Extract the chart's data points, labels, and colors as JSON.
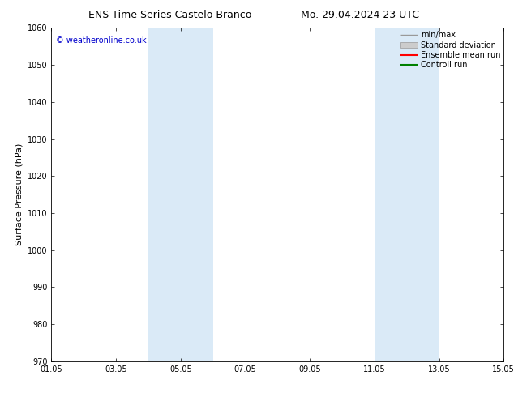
{
  "title_left": "ENS Time Series Castelo Branco",
  "title_right": "Mo. 29.04.2024 23 UTC",
  "ylabel": "Surface Pressure (hPa)",
  "ylim": [
    970,
    1060
  ],
  "yticks": [
    970,
    980,
    990,
    1000,
    1010,
    1020,
    1030,
    1040,
    1050,
    1060
  ],
  "xlim": [
    0,
    14
  ],
  "xtick_labels": [
    "01.05",
    "03.05",
    "05.05",
    "07.05",
    "09.05",
    "11.05",
    "13.05",
    "15.05"
  ],
  "xtick_positions": [
    0,
    2,
    4,
    6,
    8,
    10,
    12,
    14
  ],
  "shade_bands": [
    {
      "xmin": 3.0,
      "xmax": 5.0,
      "color": "#daeaf7"
    },
    {
      "xmin": 10.0,
      "xmax": 12.0,
      "color": "#daeaf7"
    }
  ],
  "watermark": "© weatheronline.co.uk",
  "watermark_color": "#0000cc",
  "legend_entries": [
    {
      "label": "min/max",
      "color": "#999999",
      "style": "line",
      "lw": 1.0
    },
    {
      "label": "Standard deviation",
      "color": "#cccccc",
      "style": "band",
      "lw": 6
    },
    {
      "label": "Ensemble mean run",
      "color": "#ff0000",
      "style": "line",
      "lw": 1.5
    },
    {
      "label": "Controll run",
      "color": "#008000",
      "style": "line",
      "lw": 1.5
    }
  ],
  "bg_color": "#ffffff",
  "spine_color": "#000000",
  "title_fontsize": 9,
  "tick_fontsize": 7,
  "ylabel_fontsize": 8,
  "watermark_fontsize": 7,
  "legend_fontsize": 7
}
